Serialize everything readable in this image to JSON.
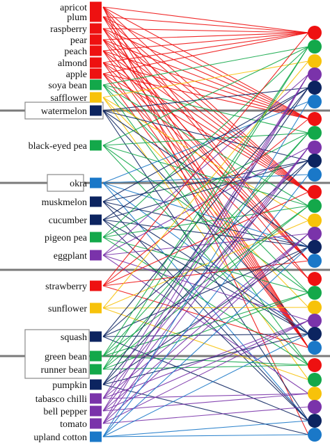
{
  "colors": {
    "red": "#ee1111",
    "green": "#13a84a",
    "yellow": "#f7c20a",
    "purple": "#7a33aa",
    "navy": "#0c2460",
    "blue": "#1a78c8",
    "separator": "#7a7a7a"
  },
  "plants": [
    {
      "name": "apricot",
      "color": "red"
    },
    {
      "name": "plum",
      "color": "red"
    },
    {
      "name": "raspberry",
      "color": "red"
    },
    {
      "name": "pear",
      "color": "red"
    },
    {
      "name": "peach",
      "color": "red"
    },
    {
      "name": "almond",
      "color": "red"
    },
    {
      "name": "apple",
      "color": "red"
    },
    {
      "name": "soya bean",
      "color": "green"
    },
    {
      "name": "safflower",
      "color": "yellow"
    },
    {
      "name": "watermelon",
      "color": "navy",
      "boxed": true
    },
    {
      "name": "black-eyed pea",
      "color": "green"
    },
    {
      "name": "okra",
      "color": "blue",
      "boxed": true
    },
    {
      "name": "muskmelon",
      "color": "navy"
    },
    {
      "name": "cucumber",
      "color": "navy"
    },
    {
      "name": "pigeon pea",
      "color": "green"
    },
    {
      "name": "eggplant",
      "color": "purple"
    },
    {
      "name": "strawberry",
      "color": "red"
    },
    {
      "name": "sunflower",
      "color": "yellow"
    },
    {
      "name": "squash",
      "color": "navy"
    },
    {
      "name": "green bean",
      "color": "green"
    },
    {
      "name": "runner bean",
      "color": "green"
    },
    {
      "name": "pumpkin",
      "color": "navy"
    },
    {
      "name": "tabasco chilli",
      "color": "purple"
    },
    {
      "name": "bell pepper",
      "color": "purple"
    },
    {
      "name": "tomato",
      "color": "purple"
    },
    {
      "name": "upland cotton",
      "color": "blue"
    }
  ],
  "right_groups": [
    [
      "red",
      "green",
      "yellow",
      "purple",
      "navy",
      "blue"
    ],
    [
      "red",
      "green",
      "purple",
      "navy",
      "blue"
    ],
    [
      "red",
      "green",
      "yellow",
      "purple",
      "navy",
      "blue"
    ],
    [
      "red",
      "green",
      "yellow",
      "purple",
      "navy",
      "blue"
    ],
    [
      "red",
      "green",
      "yellow",
      "purple",
      "navy",
      "blue"
    ]
  ],
  "links": [
    [
      0,
      0
    ],
    [
      0,
      6
    ],
    [
      0,
      11
    ],
    [
      0,
      16
    ],
    [
      0,
      22
    ],
    [
      0,
      28
    ],
    [
      1,
      0
    ],
    [
      1,
      6
    ],
    [
      1,
      11
    ],
    [
      1,
      16
    ],
    [
      1,
      22
    ],
    [
      2,
      0
    ],
    [
      2,
      6
    ],
    [
      2,
      11
    ],
    [
      2,
      17
    ],
    [
      2,
      22
    ],
    [
      3,
      0
    ],
    [
      3,
      6
    ],
    [
      3,
      11
    ],
    [
      3,
      16
    ],
    [
      3,
      22
    ],
    [
      4,
      0
    ],
    [
      4,
      6
    ],
    [
      4,
      11
    ],
    [
      4,
      16
    ],
    [
      4,
      22
    ],
    [
      5,
      0
    ],
    [
      5,
      6
    ],
    [
      5,
      11
    ],
    [
      5,
      16
    ],
    [
      5,
      22
    ],
    [
      6,
      0
    ],
    [
      6,
      6
    ],
    [
      6,
      11
    ],
    [
      6,
      17
    ],
    [
      6,
      22
    ],
    [
      7,
      1
    ],
    [
      7,
      7
    ],
    [
      7,
      12
    ],
    [
      7,
      18
    ],
    [
      7,
      23
    ],
    [
      8,
      2
    ],
    [
      8,
      13
    ],
    [
      8,
      19
    ],
    [
      8,
      24
    ],
    [
      9,
      4
    ],
    [
      9,
      9
    ],
    [
      9,
      15
    ],
    [
      9,
      21
    ],
    [
      9,
      27
    ],
    [
      10,
      1
    ],
    [
      10,
      7
    ],
    [
      10,
      12
    ],
    [
      10,
      18
    ],
    [
      10,
      23
    ],
    [
      11,
      5
    ],
    [
      11,
      10
    ],
    [
      11,
      15
    ],
    [
      11,
      21
    ],
    [
      11,
      27
    ],
    [
      12,
      4
    ],
    [
      12,
      9
    ],
    [
      12,
      15
    ],
    [
      12,
      21
    ],
    [
      12,
      27
    ],
    [
      13,
      4
    ],
    [
      13,
      9
    ],
    [
      13,
      15
    ],
    [
      13,
      21
    ],
    [
      13,
      27
    ],
    [
      14,
      1
    ],
    [
      14,
      7
    ],
    [
      14,
      12
    ],
    [
      14,
      18
    ],
    [
      14,
      23
    ],
    [
      15,
      3
    ],
    [
      15,
      8
    ],
    [
      15,
      14
    ],
    [
      15,
      20
    ],
    [
      15,
      25
    ],
    [
      16,
      0
    ],
    [
      16,
      6
    ],
    [
      16,
      11
    ],
    [
      16,
      16
    ],
    [
      16,
      22
    ],
    [
      17,
      2
    ],
    [
      17,
      13
    ],
    [
      17,
      19
    ],
    [
      17,
      24
    ],
    [
      18,
      4
    ],
    [
      18,
      9
    ],
    [
      18,
      15
    ],
    [
      18,
      21
    ],
    [
      18,
      27
    ],
    [
      19,
      1
    ],
    [
      19,
      7
    ],
    [
      19,
      12
    ],
    [
      19,
      18
    ],
    [
      19,
      23
    ],
    [
      20,
      1
    ],
    [
      20,
      7
    ],
    [
      20,
      12
    ],
    [
      20,
      18
    ],
    [
      20,
      23
    ],
    [
      21,
      4
    ],
    [
      21,
      9
    ],
    [
      21,
      15
    ],
    [
      21,
      21
    ],
    [
      21,
      28
    ],
    [
      22,
      3
    ],
    [
      22,
      8
    ],
    [
      22,
      14
    ],
    [
      22,
      20
    ],
    [
      22,
      25
    ],
    [
      23,
      3
    ],
    [
      23,
      8
    ],
    [
      23,
      14
    ],
    [
      23,
      20
    ],
    [
      23,
      25
    ],
    [
      24,
      3
    ],
    [
      24,
      8
    ],
    [
      24,
      14
    ],
    [
      24,
      20
    ],
    [
      24,
      26
    ],
    [
      25,
      5
    ],
    [
      25,
      10
    ],
    [
      25,
      15
    ],
    [
      25,
      21
    ],
    [
      25,
      27
    ],
    [
      25,
      28
    ]
  ]
}
